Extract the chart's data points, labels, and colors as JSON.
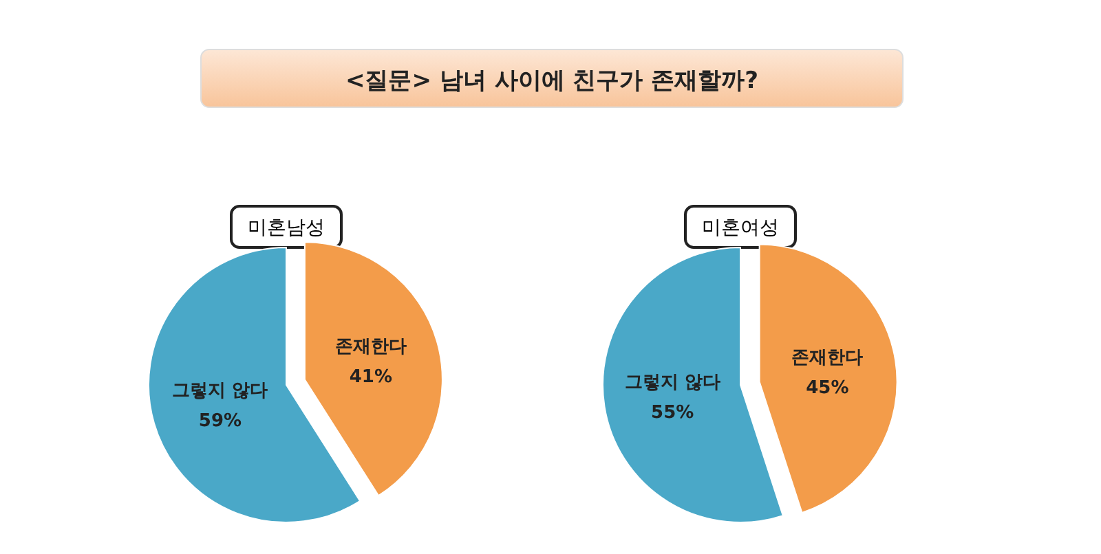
{
  "chart_data": [
    {
      "type": "pie",
      "title": "<질문>  남녀 사이에 친구가 존재할까?",
      "subtitle": "미혼남성",
      "categories": [
        "존재한다",
        "그렇지 않다"
      ],
      "values": [
        41,
        59
      ],
      "value_labels": [
        "41%",
        "59%"
      ],
      "colors": [
        "#f39c4a",
        "#4aa8c8"
      ]
    },
    {
      "type": "pie",
      "subtitle": "미혼여성",
      "categories": [
        "존재한다",
        "그렇지 않다"
      ],
      "values": [
        45,
        55
      ],
      "value_labels": [
        "45%",
        "55%"
      ],
      "colors": [
        "#f39c4a",
        "#4aa8c8"
      ]
    }
  ]
}
